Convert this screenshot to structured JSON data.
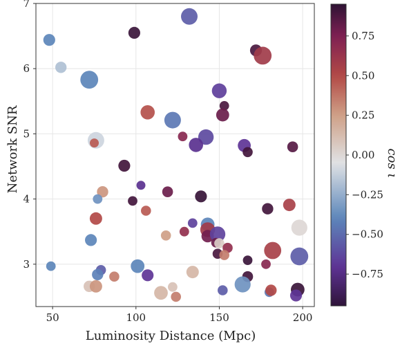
{
  "chart_data": {
    "type": "scatter",
    "xlabel": "Luminosity Distance (Mpc)",
    "ylabel": "Network SNR",
    "colorbar_label": "cos ι",
    "xlim": [
      40,
      207
    ],
    "ylim": [
      2.35,
      7.0
    ],
    "clim": [
      -0.95,
      0.95
    ],
    "x_ticks": [
      "50",
      "100",
      "150",
      "200"
    ],
    "y_ticks": [
      "3",
      "4",
      "5",
      "6",
      "7"
    ],
    "c_ticks": [
      "0.75",
      "0.50",
      "0.25",
      "0.00",
      "−0.25",
      "−0.50",
      "−0.75"
    ],
    "grid": true,
    "colormap": "twilight_shifted",
    "points": [
      {
        "x": 132,
        "y": 6.8,
        "c": -0.55,
        "s": 1.0
      },
      {
        "x": 48,
        "y": 6.44,
        "c": -0.4,
        "s": 0.6
      },
      {
        "x": 99,
        "y": 6.55,
        "c": 0.92,
        "s": 0.6
      },
      {
        "x": 172,
        "y": 6.28,
        "c": 0.88,
        "s": 0.6
      },
      {
        "x": 176,
        "y": 6.2,
        "c": 0.58,
        "s": 1.1
      },
      {
        "x": 55,
        "y": 6.02,
        "c": -0.18,
        "s": 0.55
      },
      {
        "x": 72,
        "y": 5.83,
        "c": -0.4,
        "s": 1.1
      },
      {
        "x": 150,
        "y": 5.66,
        "c": -0.66,
        "s": 0.85
      },
      {
        "x": 107,
        "y": 5.33,
        "c": 0.48,
        "s": 0.8
      },
      {
        "x": 153,
        "y": 5.43,
        "c": 0.88,
        "s": 0.4
      },
      {
        "x": 152,
        "y": 5.29,
        "c": 0.8,
        "s": 0.7
      },
      {
        "x": 122,
        "y": 5.21,
        "c": -0.45,
        "s": 1.0
      },
      {
        "x": 142,
        "y": 4.95,
        "c": -0.62,
        "s": 0.9
      },
      {
        "x": 136,
        "y": 4.83,
        "c": -0.72,
        "s": 0.8
      },
      {
        "x": 128,
        "y": 4.96,
        "c": 0.7,
        "s": 0.4
      },
      {
        "x": 76,
        "y": 4.9,
        "c": -0.1,
        "s": 1.0
      },
      {
        "x": 75,
        "y": 4.86,
        "c": 0.45,
        "s": 0.35
      },
      {
        "x": 165,
        "y": 4.82,
        "c": -0.7,
        "s": 0.7
      },
      {
        "x": 167,
        "y": 4.72,
        "c": 0.9,
        "s": 0.45
      },
      {
        "x": 194,
        "y": 4.8,
        "c": 0.85,
        "s": 0.5
      },
      {
        "x": 93,
        "y": 4.51,
        "c": 0.9,
        "s": 0.6
      },
      {
        "x": 103,
        "y": 4.21,
        "c": -0.72,
        "s": 0.35
      },
      {
        "x": 119,
        "y": 4.11,
        "c": 0.8,
        "s": 0.5
      },
      {
        "x": 80,
        "y": 4.11,
        "c": 0.28,
        "s": 0.55
      },
      {
        "x": 77,
        "y": 4.0,
        "c": -0.35,
        "s": 0.4
      },
      {
        "x": 139,
        "y": 4.04,
        "c": 0.93,
        "s": 0.6
      },
      {
        "x": 98,
        "y": 3.97,
        "c": 0.9,
        "s": 0.4
      },
      {
        "x": 106,
        "y": 3.82,
        "c": 0.45,
        "s": 0.45
      },
      {
        "x": 179,
        "y": 3.85,
        "c": 0.9,
        "s": 0.55
      },
      {
        "x": 192,
        "y": 3.91,
        "c": 0.55,
        "s": 0.65
      },
      {
        "x": 76,
        "y": 3.7,
        "c": 0.5,
        "s": 0.65
      },
      {
        "x": 143,
        "y": 3.61,
        "c": -0.4,
        "s": 0.75
      },
      {
        "x": 134,
        "y": 3.63,
        "c": -0.65,
        "s": 0.4
      },
      {
        "x": 198,
        "y": 3.56,
        "c": 0.0,
        "s": 0.95
      },
      {
        "x": 143,
        "y": 3.53,
        "c": 0.58,
        "s": 0.85
      },
      {
        "x": 129,
        "y": 3.5,
        "c": 0.65,
        "s": 0.4
      },
      {
        "x": 118,
        "y": 3.44,
        "c": 0.25,
        "s": 0.45
      },
      {
        "x": 143,
        "y": 3.43,
        "c": 0.78,
        "s": 0.65
      },
      {
        "x": 149,
        "y": 3.46,
        "c": -0.65,
        "s": 0.9
      },
      {
        "x": 73,
        "y": 3.37,
        "c": -0.4,
        "s": 0.6
      },
      {
        "x": 148,
        "y": 3.33,
        "c": 0.8,
        "s": 0.4
      },
      {
        "x": 150,
        "y": 3.32,
        "c": 0.05,
        "s": 0.45
      },
      {
        "x": 155,
        "y": 3.25,
        "c": 0.65,
        "s": 0.45
      },
      {
        "x": 149,
        "y": 3.16,
        "c": 0.88,
        "s": 0.45
      },
      {
        "x": 153,
        "y": 3.14,
        "c": 0.35,
        "s": 0.45
      },
      {
        "x": 182,
        "y": 3.21,
        "c": 0.55,
        "s": 1.05
      },
      {
        "x": 198,
        "y": 3.12,
        "c": -0.55,
        "s": 1.1
      },
      {
        "x": 167,
        "y": 3.06,
        "c": 0.92,
        "s": 0.4
      },
      {
        "x": 101,
        "y": 2.97,
        "c": -0.4,
        "s": 0.75
      },
      {
        "x": 49,
        "y": 2.97,
        "c": -0.4,
        "s": 0.4
      },
      {
        "x": 79,
        "y": 2.91,
        "c": -0.55,
        "s": 0.45
      },
      {
        "x": 178,
        "y": 3.0,
        "c": 0.7,
        "s": 0.4
      },
      {
        "x": 134,
        "y": 2.88,
        "c": 0.15,
        "s": 0.65
      },
      {
        "x": 77,
        "y": 2.84,
        "c": -0.42,
        "s": 0.55
      },
      {
        "x": 87,
        "y": 2.81,
        "c": 0.35,
        "s": 0.45
      },
      {
        "x": 107,
        "y": 2.83,
        "c": -0.7,
        "s": 0.6
      },
      {
        "x": 167,
        "y": 2.81,
        "c": 0.9,
        "s": 0.5
      },
      {
        "x": 164,
        "y": 2.69,
        "c": -0.35,
        "s": 0.95
      },
      {
        "x": 72,
        "y": 2.66,
        "c": 0.1,
        "s": 0.55
      },
      {
        "x": 76,
        "y": 2.66,
        "c": 0.28,
        "s": 0.65
      },
      {
        "x": 122,
        "y": 2.65,
        "c": 0.1,
        "s": 0.4
      },
      {
        "x": 115,
        "y": 2.56,
        "c": 0.15,
        "s": 0.75
      },
      {
        "x": 152,
        "y": 2.6,
        "c": -0.55,
        "s": 0.45
      },
      {
        "x": 180,
        "y": 2.57,
        "c": -0.45,
        "s": 0.4
      },
      {
        "x": 181,
        "y": 2.6,
        "c": 0.5,
        "s": 0.55
      },
      {
        "x": 124,
        "y": 2.5,
        "c": 0.35,
        "s": 0.45
      },
      {
        "x": 197,
        "y": 2.61,
        "c": 0.92,
        "s": 0.75
      },
      {
        "x": 196,
        "y": 2.52,
        "c": -0.7,
        "s": 0.6
      }
    ]
  }
}
